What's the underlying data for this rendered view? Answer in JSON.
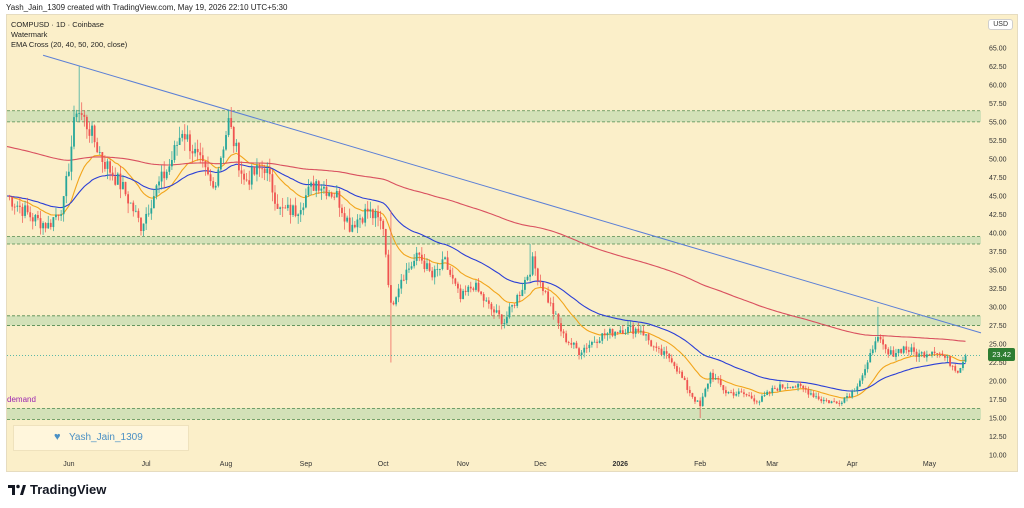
{
  "credit": "Yash_Jain_1309 created with TradingView.com, May 19, 2026 22:10 UTC+5:30",
  "header": {
    "symbol_line": "COMPUSD · 1D · Coinbase",
    "watermark_line": "Watermark",
    "ema_line": "EMA Cross (20, 40, 50, 200, close)"
  },
  "currency": "USD",
  "last_price_label": "23.42",
  "demand_label": "demand",
  "user_tag": "Yash_Jain_1309",
  "logo_text": "TradingView",
  "colors": {
    "background": "#fbefc9",
    "up": "#26a69a",
    "down": "#ef5350",
    "ema_fast": "#f2a51b",
    "ema_mid": "#2b3fd6",
    "ema_slow": "#d9505f",
    "trendline": "#5b7fd6",
    "zone_fill": "#c6dcb2",
    "zone_line": "#4f8a4f"
  },
  "chart_data": {
    "type": "candlestick",
    "title": "COMPUSD · 1D · Coinbase",
    "ylabel": "USD",
    "ylim": [
      10,
      67
    ],
    "y_ticks": [
      10,
      12.5,
      15,
      17.5,
      20,
      22.5,
      25,
      27.5,
      30,
      32.5,
      35,
      37.5,
      40,
      42.5,
      45,
      47.5,
      50,
      52.5,
      55,
      57.5,
      60,
      62.5,
      65
    ],
    "x_tick_labels": [
      "Jun",
      "Jul",
      "Aug",
      "Sep",
      "Oct",
      "Nov",
      "Dec",
      "2026",
      "Feb",
      "Mar",
      "Apr",
      "May"
    ],
    "x_tick_days": [
      24,
      54,
      85,
      116,
      146,
      177,
      207,
      238,
      269,
      297,
      328,
      358
    ],
    "x_range_days": [
      0,
      378
    ],
    "last_day": 372,
    "last_price": 23.42,
    "close_path": [
      {
        "day": 0,
        "close": 45
      },
      {
        "day": 10,
        "close": 42
      },
      {
        "day": 16,
        "close": 41
      },
      {
        "day": 22,
        "close": 44
      },
      {
        "day": 27,
        "close": 57
      },
      {
        "day": 32,
        "close": 54
      },
      {
        "day": 37,
        "close": 50
      },
      {
        "day": 45,
        "close": 46
      },
      {
        "day": 52,
        "close": 41
      },
      {
        "day": 58,
        "close": 46
      },
      {
        "day": 63,
        "close": 49
      },
      {
        "day": 68,
        "close": 54
      },
      {
        "day": 74,
        "close": 50
      },
      {
        "day": 80,
        "close": 46
      },
      {
        "day": 86,
        "close": 55
      },
      {
        "day": 92,
        "close": 47
      },
      {
        "day": 100,
        "close": 49
      },
      {
        "day": 106,
        "close": 43
      },
      {
        "day": 112,
        "close": 43
      },
      {
        "day": 120,
        "close": 47
      },
      {
        "day": 128,
        "close": 45
      },
      {
        "day": 133,
        "close": 41
      },
      {
        "day": 140,
        "close": 43
      },
      {
        "day": 146,
        "close": 41
      },
      {
        "day": 149,
        "close": 30
      },
      {
        "day": 153,
        "close": 34
      },
      {
        "day": 160,
        "close": 37
      },
      {
        "day": 165,
        "close": 34
      },
      {
        "day": 170,
        "close": 36
      },
      {
        "day": 176,
        "close": 31
      },
      {
        "day": 181,
        "close": 33
      },
      {
        "day": 187,
        "close": 30
      },
      {
        "day": 193,
        "close": 28
      },
      {
        "day": 199,
        "close": 32
      },
      {
        "day": 204,
        "close": 36
      },
      {
        "day": 210,
        "close": 31
      },
      {
        "day": 216,
        "close": 26
      },
      {
        "day": 222,
        "close": 24
      },
      {
        "day": 230,
        "close": 26
      },
      {
        "day": 238,
        "close": 27
      },
      {
        "day": 246,
        "close": 27
      },
      {
        "day": 252,
        "close": 24
      },
      {
        "day": 258,
        "close": 23
      },
      {
        "day": 264,
        "close": 19
      },
      {
        "day": 269,
        "close": 16.5
      },
      {
        "day": 273,
        "close": 21
      },
      {
        "day": 279,
        "close": 18.5
      },
      {
        "day": 286,
        "close": 18.2
      },
      {
        "day": 292,
        "close": 17.3
      },
      {
        "day": 298,
        "close": 19
      },
      {
        "day": 304,
        "close": 19.5
      },
      {
        "day": 310,
        "close": 18.8
      },
      {
        "day": 316,
        "close": 17.5
      },
      {
        "day": 322,
        "close": 17
      },
      {
        "day": 328,
        "close": 18.5
      },
      {
        "day": 334,
        "close": 22
      },
      {
        "day": 337,
        "close": 26
      },
      {
        "day": 342,
        "close": 23.5
      },
      {
        "day": 348,
        "close": 24.5
      },
      {
        "day": 354,
        "close": 23.5
      },
      {
        "day": 360,
        "close": 24.3
      },
      {
        "day": 366,
        "close": 22.5
      },
      {
        "day": 369,
        "close": 21.5
      },
      {
        "day": 372,
        "close": 23.42
      }
    ],
    "wick_spikes": [
      {
        "day": 28,
        "high": 62.5
      },
      {
        "day": 87,
        "high": 57
      },
      {
        "day": 149,
        "low": 22.5,
        "high": 43
      },
      {
        "day": 203,
        "high": 38.5
      },
      {
        "day": 269,
        "low": 15
      },
      {
        "day": 338,
        "high": 30
      }
    ],
    "ema_periods": [
      20,
      50,
      200
    ],
    "trendline": {
      "start": {
        "day": 14,
        "price": 64
      },
      "end": {
        "day": 378,
        "price": 26.5
      }
    },
    "zones": [
      {
        "low": 55,
        "high": 56.5
      },
      {
        "low": 38.5,
        "high": 39.5
      },
      {
        "low": 27.5,
        "high": 28.8
      },
      {
        "low": 14.8,
        "high": 16.3,
        "label": "demand"
      }
    ]
  }
}
